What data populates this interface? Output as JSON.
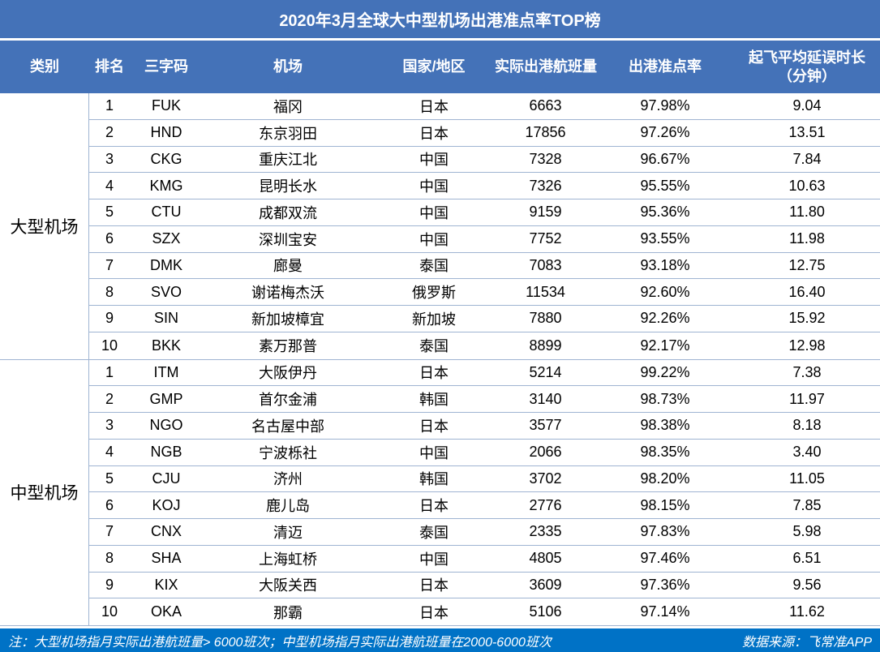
{
  "chart_data": {
    "type": "table",
    "title": "2020年3月全球大中型机场出港准点率TOP榜",
    "columns": {
      "category": "类别",
      "rank": "排名",
      "code": "三字码",
      "airport": "机场",
      "country": "国家/地区",
      "flights": "实际出港航班量",
      "ontime_rate": "出港准点率",
      "avg_delay_line1": "起飞平均延误时长",
      "avg_delay_line2": "（分钟）"
    },
    "sections": [
      {
        "category": "大型机场",
        "rows": [
          [
            "1",
            "FUK",
            "福冈",
            "日本",
            "6663",
            "97.98%",
            "9.04"
          ],
          [
            "2",
            "HND",
            "东京羽田",
            "日本",
            "17856",
            "97.26%",
            "13.51"
          ],
          [
            "3",
            "CKG",
            "重庆江北",
            "中国",
            "7328",
            "96.67%",
            "7.84"
          ],
          [
            "4",
            "KMG",
            "昆明长水",
            "中国",
            "7326",
            "95.55%",
            "10.63"
          ],
          [
            "5",
            "CTU",
            "成都双流",
            "中国",
            "9159",
            "95.36%",
            "11.80"
          ],
          [
            "6",
            "SZX",
            "深圳宝安",
            "中国",
            "7752",
            "93.55%",
            "11.98"
          ],
          [
            "7",
            "DMK",
            "廊曼",
            "泰国",
            "7083",
            "93.18%",
            "12.75"
          ],
          [
            "8",
            "SVO",
            "谢诺梅杰沃",
            "俄罗斯",
            "11534",
            "92.60%",
            "16.40"
          ],
          [
            "9",
            "SIN",
            "新加坡樟宜",
            "新加坡",
            "7880",
            "92.26%",
            "15.92"
          ],
          [
            "10",
            "BKK",
            "素万那普",
            "泰国",
            "8899",
            "92.17%",
            "12.98"
          ]
        ]
      },
      {
        "category": "中型机场",
        "rows": [
          [
            "1",
            "ITM",
            "大阪伊丹",
            "日本",
            "5214",
            "99.22%",
            "7.38"
          ],
          [
            "2",
            "GMP",
            "首尔金浦",
            "韩国",
            "3140",
            "98.73%",
            "11.97"
          ],
          [
            "3",
            "NGO",
            "名古屋中部",
            "日本",
            "3577",
            "98.38%",
            "8.18"
          ],
          [
            "4",
            "NGB",
            "宁波栎社",
            "中国",
            "2066",
            "98.35%",
            "3.40"
          ],
          [
            "5",
            "CJU",
            "济州",
            "韩国",
            "3702",
            "98.20%",
            "11.05"
          ],
          [
            "6",
            "KOJ",
            "鹿儿岛",
            "日本",
            "2776",
            "98.15%",
            "7.85"
          ],
          [
            "7",
            "CNX",
            "清迈",
            "泰国",
            "2335",
            "97.83%",
            "5.98"
          ],
          [
            "8",
            "SHA",
            "上海虹桥",
            "中国",
            "4805",
            "97.46%",
            "6.51"
          ],
          [
            "9",
            "KIX",
            "大阪关西",
            "日本",
            "3609",
            "97.36%",
            "9.56"
          ],
          [
            "10",
            "OKA",
            "那霸",
            "日本",
            "5106",
            "97.14%",
            "11.62"
          ]
        ]
      }
    ],
    "note": "注：大型机场指月实际出港航班量> 6000班次；中型机场指月实际出港航班量在2000-6000班次",
    "source": "数据来源：飞常准APP"
  },
  "colors": {
    "header_blue": "#4472B8",
    "footer_blue": "#0072C6",
    "row_border": "#9FB4D2",
    "text": "#000000",
    "header_text": "#FFFFFF"
  }
}
